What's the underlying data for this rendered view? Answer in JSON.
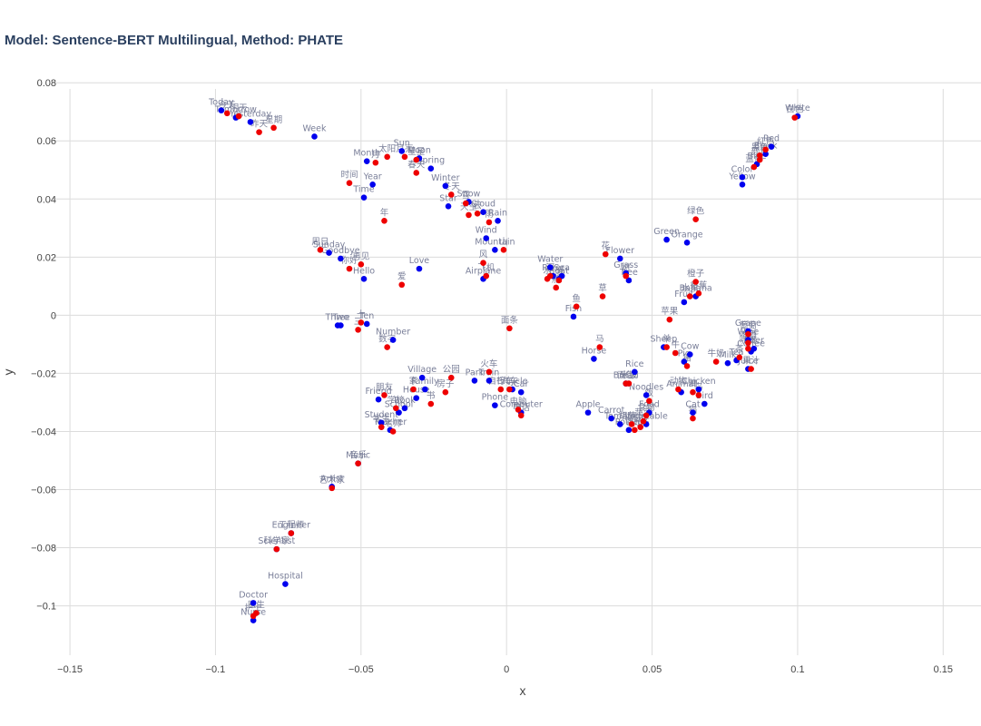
{
  "chart_data": {
    "type": "scatter",
    "title": "Model: Sentence-BERT Multilingual, Method: PHATE",
    "xlabel": "x",
    "ylabel": "y",
    "xlim": [
      -0.16,
      0.163
    ],
    "ylim": [
      -0.117,
      0.081
    ],
    "x_ticks": [
      -0.15,
      -0.1,
      -0.05,
      0,
      0.05,
      0.1,
      0.15
    ],
    "x_tick_labels": [
      "−0.15",
      "−0.1",
      "−0.05",
      "0",
      "0.05",
      "0.1",
      "0.15"
    ],
    "y_ticks": [
      0.08,
      0.06,
      0.04,
      0.02,
      0,
      -0.02,
      -0.04,
      -0.06,
      -0.08,
      -0.1
    ],
    "y_tick_labels": [
      "0.08",
      "0.06",
      "0.04",
      "0.02",
      "0",
      "−0.02",
      "−0.04",
      "−0.06",
      "−0.08",
      "−0.1"
    ],
    "grid": true,
    "legend": "none",
    "colors": {
      "english": "#0000ee",
      "chinese": "#ee0000"
    },
    "series": [
      {
        "color": "blue",
        "points": [
          {
            "label": "Today",
            "x": -0.098,
            "y": 0.0705
          },
          {
            "label": "Tomorrow",
            "x": -0.093,
            "y": 0.068
          },
          {
            "label": "Yesterday",
            "x": -0.088,
            "y": 0.0665
          },
          {
            "label": "Week",
            "x": -0.066,
            "y": 0.0615
          },
          {
            "label": "Month",
            "x": -0.048,
            "y": 0.053
          },
          {
            "label": "Sun",
            "x": -0.036,
            "y": 0.0565
          },
          {
            "label": "Moon",
            "x": -0.03,
            "y": 0.054
          },
          {
            "label": "Spring",
            "x": -0.026,
            "y": 0.0505
          },
          {
            "label": "Winter",
            "x": -0.021,
            "y": 0.0445
          },
          {
            "label": "Snow",
            "x": -0.013,
            "y": 0.039
          },
          {
            "label": "Star",
            "x": -0.02,
            "y": 0.0375
          },
          {
            "label": "Cloud",
            "x": -0.008,
            "y": 0.0355
          },
          {
            "label": "Rain",
            "x": -0.003,
            "y": 0.0325
          },
          {
            "label": "Year",
            "x": -0.046,
            "y": 0.045
          },
          {
            "label": "Time",
            "x": -0.049,
            "y": 0.0405
          },
          {
            "label": "Wind",
            "x": -0.007,
            "y": 0.0265
          },
          {
            "label": "Mountain",
            "x": -0.004,
            "y": 0.0225
          },
          {
            "label": "Airplane",
            "x": -0.008,
            "y": 0.0125
          },
          {
            "label": "Love",
            "x": -0.03,
            "y": 0.016
          },
          {
            "label": "Sunday",
            "x": -0.061,
            "y": 0.0215
          },
          {
            "label": "Goodbye",
            "x": -0.057,
            "y": 0.0195
          },
          {
            "label": "Hello",
            "x": -0.049,
            "y": 0.0125
          },
          {
            "label": "Three",
            "x": -0.058,
            "y": -0.0035
          },
          {
            "label": "Two",
            "x": -0.057,
            "y": -0.0035
          },
          {
            "label": "Ten",
            "x": -0.048,
            "y": -0.003
          },
          {
            "label": "Number",
            "x": -0.039,
            "y": -0.0085
          },
          {
            "label": "Friend",
            "x": -0.044,
            "y": -0.029
          },
          {
            "label": "School",
            "x": -0.037,
            "y": -0.0335
          },
          {
            "label": "Student",
            "x": -0.043,
            "y": -0.037
          },
          {
            "label": "Teacher",
            "x": -0.04,
            "y": -0.0395
          },
          {
            "label": "Village",
            "x": -0.029,
            "y": -0.0215
          },
          {
            "label": "Family",
            "x": -0.028,
            "y": -0.0255
          },
          {
            "label": "House",
            "x": -0.031,
            "y": -0.0285
          },
          {
            "label": "Book",
            "x": -0.035,
            "y": -0.032
          },
          {
            "label": "Music",
            "x": -0.051,
            "y": -0.051
          },
          {
            "label": "Artist",
            "x": -0.06,
            "y": -0.059
          },
          {
            "label": "Engineer",
            "x": -0.074,
            "y": -0.075
          },
          {
            "label": "Scientist",
            "x": -0.079,
            "y": -0.0805
          },
          {
            "label": "Hospital",
            "x": -0.076,
            "y": -0.0925
          },
          {
            "label": "Doctor",
            "x": -0.087,
            "y": -0.099
          },
          {
            "label": "Nurse",
            "x": -0.087,
            "y": -0.105
          },
          {
            "label": "Park",
            "x": -0.011,
            "y": -0.0225
          },
          {
            "label": "Train",
            "x": -0.006,
            "y": -0.0225
          },
          {
            "label": "Phone",
            "x": -0.004,
            "y": -0.031
          },
          {
            "label": "Bicycle",
            "x": 0.002,
            "y": -0.0255
          },
          {
            "label": "Car",
            "x": 0.005,
            "y": -0.0265
          },
          {
            "label": "Computer",
            "x": 0.005,
            "y": -0.0335
          },
          {
            "label": "Water",
            "x": 0.015,
            "y": 0.0165
          },
          {
            "label": "River",
            "x": 0.016,
            "y": 0.0135
          },
          {
            "label": "Boat",
            "x": 0.018,
            "y": 0.0125
          },
          {
            "label": "Sea",
            "x": 0.019,
            "y": 0.0135
          },
          {
            "label": "Fish",
            "x": 0.023,
            "y": -0.0005
          },
          {
            "label": "Flower",
            "x": 0.039,
            "y": 0.0195
          },
          {
            "label": "Grass",
            "x": 0.041,
            "y": 0.0145
          },
          {
            "label": "Tree",
            "x": 0.042,
            "y": 0.012
          },
          {
            "label": "Green",
            "x": 0.055,
            "y": 0.026
          },
          {
            "label": "Orange",
            "x": 0.062,
            "y": 0.025
          },
          {
            "label": "Fruit",
            "x": 0.061,
            "y": 0.0045
          },
          {
            "label": "Banana",
            "x": 0.065,
            "y": 0.0065
          },
          {
            "label": "Horse",
            "x": 0.03,
            "y": -0.015
          },
          {
            "label": "Rice",
            "x": 0.044,
            "y": -0.0195
          },
          {
            "label": "Bread",
            "x": 0.041,
            "y": -0.0235
          },
          {
            "label": "Noodles",
            "x": 0.048,
            "y": -0.0275
          },
          {
            "label": "Food",
            "x": 0.049,
            "y": -0.0335
          },
          {
            "label": "Apple",
            "x": 0.028,
            "y": -0.0335
          },
          {
            "label": "Carrot",
            "x": 0.036,
            "y": -0.0355
          },
          {
            "label": "Tomato",
            "x": 0.039,
            "y": -0.0375
          },
          {
            "label": "Potato",
            "x": 0.042,
            "y": -0.0395
          },
          {
            "label": "Vegetable",
            "x": 0.048,
            "y": -0.0375
          },
          {
            "label": "Sheep",
            "x": 0.054,
            "y": -0.011
          },
          {
            "label": "Cow",
            "x": 0.063,
            "y": -0.0135
          },
          {
            "label": "Pig",
            "x": 0.061,
            "y": -0.016
          },
          {
            "label": "Animal",
            "x": 0.06,
            "y": -0.0265
          },
          {
            "label": "Chicken",
            "x": 0.066,
            "y": -0.0255
          },
          {
            "label": "Bird",
            "x": 0.068,
            "y": -0.0305
          },
          {
            "label": "Cat",
            "x": 0.064,
            "y": -0.0335
          },
          {
            "label": "Milk",
            "x": 0.076,
            "y": -0.0165
          },
          {
            "label": "Tea",
            "x": 0.079,
            "y": -0.0155
          },
          {
            "label": "Coffee",
            "x": 0.084,
            "y": -0.0125
          },
          {
            "label": "Juice",
            "x": 0.083,
            "y": -0.0185
          },
          {
            "label": "Grape",
            "x": 0.083,
            "y": -0.0055
          },
          {
            "label": "Wine",
            "x": 0.083,
            "y": -0.0085
          },
          {
            "label": "Beer",
            "x": 0.085,
            "y": -0.0115
          },
          {
            "label": "Color",
            "x": 0.081,
            "y": 0.0475
          },
          {
            "label": "Yellow",
            "x": 0.081,
            "y": 0.045
          },
          {
            "label": "Red",
            "x": 0.091,
            "y": 0.058
          },
          {
            "label": "Black",
            "x": 0.089,
            "y": 0.0555
          },
          {
            "label": "Blue",
            "x": 0.086,
            "y": 0.052
          },
          {
            "label": "White",
            "x": 0.1,
            "y": 0.0685
          }
        ]
      },
      {
        "color": "red",
        "points": [
          {
            "label": "今天",
            "x": -0.096,
            "y": 0.0695
          },
          {
            "label": "明天",
            "x": -0.092,
            "y": 0.0685
          },
          {
            "label": "昨天",
            "x": -0.085,
            "y": 0.063
          },
          {
            "label": "星期",
            "x": -0.08,
            "y": 0.0645
          },
          {
            "label": "时间",
            "x": -0.054,
            "y": 0.0455
          },
          {
            "label": "年",
            "x": -0.042,
            "y": 0.0325
          },
          {
            "label": "月",
            "x": -0.045,
            "y": 0.0525
          },
          {
            "label": "太阳",
            "x": -0.041,
            "y": 0.0545
          },
          {
            "label": "月亮",
            "x": -0.035,
            "y": 0.0545
          },
          {
            "label": "星星",
            "x": -0.031,
            "y": 0.0535
          },
          {
            "label": "春天",
            "x": -0.031,
            "y": 0.049
          },
          {
            "label": "冬天",
            "x": -0.019,
            "y": 0.0415
          },
          {
            "label": "雪",
            "x": -0.014,
            "y": 0.0385
          },
          {
            "label": "云",
            "x": -0.01,
            "y": 0.035
          },
          {
            "label": "雨",
            "x": -0.006,
            "y": 0.032
          },
          {
            "label": "天空",
            "x": -0.013,
            "y": 0.0345
          },
          {
            "label": "风",
            "x": -0.008,
            "y": 0.018
          },
          {
            "label": "山",
            "x": -0.001,
            "y": 0.0225
          },
          {
            "label": "飞机",
            "x": -0.007,
            "y": 0.0135
          },
          {
            "label": "爱",
            "x": -0.036,
            "y": 0.0105
          },
          {
            "label": "周日",
            "x": -0.064,
            "y": 0.0225
          },
          {
            "label": "再见",
            "x": -0.05,
            "y": 0.0175
          },
          {
            "label": "你好",
            "x": -0.054,
            "y": 0.016
          },
          {
            "label": "三",
            "x": -0.051,
            "y": -0.005
          },
          {
            "label": "十",
            "x": -0.05,
            "y": -0.0025
          },
          {
            "label": "数字",
            "x": -0.041,
            "y": -0.011
          },
          {
            "label": "朋友",
            "x": -0.042,
            "y": -0.0275
          },
          {
            "label": "学校",
            "x": -0.038,
            "y": -0.032
          },
          {
            "label": "学生",
            "x": -0.043,
            "y": -0.0385
          },
          {
            "label": "老师",
            "x": -0.039,
            "y": -0.04
          },
          {
            "label": "家",
            "x": -0.032,
            "y": -0.0255
          },
          {
            "label": "书",
            "x": -0.026,
            "y": -0.0305
          },
          {
            "label": "公园",
            "x": -0.019,
            "y": -0.0215
          },
          {
            "label": "房子",
            "x": -0.021,
            "y": -0.0265
          },
          {
            "label": "音乐",
            "x": -0.051,
            "y": -0.051
          },
          {
            "label": "艺术家",
            "x": -0.06,
            "y": -0.0595
          },
          {
            "label": "工程师",
            "x": -0.074,
            "y": -0.075
          },
          {
            "label": "科学家",
            "x": -0.079,
            "y": -0.0805
          },
          {
            "label": "医生",
            "x": -0.086,
            "y": -0.1025
          },
          {
            "label": "护士",
            "x": -0.087,
            "y": -0.1035
          },
          {
            "label": "火车",
            "x": -0.006,
            "y": -0.0195
          },
          {
            "label": "自行车",
            "x": -0.002,
            "y": -0.0255
          },
          {
            "label": "汽车",
            "x": 0.001,
            "y": -0.0255
          },
          {
            "label": "电脑",
            "x": 0.004,
            "y": -0.0325
          },
          {
            "label": "电话",
            "x": 0.005,
            "y": -0.0345
          },
          {
            "label": "面条",
            "x": 0.001,
            "y": -0.0045
          },
          {
            "label": "水",
            "x": 0.014,
            "y": 0.0125
          },
          {
            "label": "河",
            "x": 0.015,
            "y": 0.0135
          },
          {
            "label": "船",
            "x": 0.017,
            "y": 0.0095
          },
          {
            "label": "海",
            "x": 0.018,
            "y": 0.012
          },
          {
            "label": "鱼",
            "x": 0.024,
            "y": 0.003
          },
          {
            "label": "花",
            "x": 0.034,
            "y": 0.021
          },
          {
            "label": "草",
            "x": 0.033,
            "y": 0.0065
          },
          {
            "label": "树",
            "x": 0.041,
            "y": 0.0135
          },
          {
            "label": "绿色",
            "x": 0.065,
            "y": 0.033
          },
          {
            "label": "橙子",
            "x": 0.065,
            "y": 0.0115
          },
          {
            "label": "香蕉",
            "x": 0.066,
            "y": 0.0075
          },
          {
            "label": "水果",
            "x": 0.063,
            "y": 0.0065
          },
          {
            "label": "苹果",
            "x": 0.056,
            "y": -0.0015
          },
          {
            "label": "马",
            "x": 0.032,
            "y": -0.011
          },
          {
            "label": "米饭",
            "x": 0.042,
            "y": -0.0235
          },
          {
            "label": "面包",
            "x": 0.041,
            "y": -0.0235
          },
          {
            "label": "饭",
            "x": 0.049,
            "y": -0.0295
          },
          {
            "label": "食物",
            "x": 0.048,
            "y": -0.0345
          },
          {
            "label": "胡萝卜",
            "x": 0.043,
            "y": -0.0375
          },
          {
            "label": "番茄",
            "x": 0.044,
            "y": -0.0395
          },
          {
            "label": "土豆",
            "x": 0.046,
            "y": -0.0385
          },
          {
            "label": "蔬菜",
            "x": 0.047,
            "y": -0.0365
          },
          {
            "label": "羊",
            "x": 0.055,
            "y": -0.011
          },
          {
            "label": "牛",
            "x": 0.058,
            "y": -0.013
          },
          {
            "label": "猪",
            "x": 0.062,
            "y": -0.0175
          },
          {
            "label": "牛奶",
            "x": 0.072,
            "y": -0.016
          },
          {
            "label": "动物",
            "x": 0.059,
            "y": -0.0255
          },
          {
            "label": "鸡",
            "x": 0.064,
            "y": -0.0265
          },
          {
            "label": "鸟",
            "x": 0.066,
            "y": -0.0275
          },
          {
            "label": "猫",
            "x": 0.064,
            "y": -0.0355
          },
          {
            "label": "茶",
            "x": 0.08,
            "y": -0.0145
          },
          {
            "label": "咖啡",
            "x": 0.083,
            "y": -0.0115
          },
          {
            "label": "果汁",
            "x": 0.084,
            "y": -0.0185
          },
          {
            "label": "葡萄",
            "x": 0.083,
            "y": -0.0065
          },
          {
            "label": "啤酒",
            "x": 0.083,
            "y": -0.0095
          },
          {
            "label": "颜色",
            "x": 0.087,
            "y": 0.0535
          },
          {
            "label": "红色",
            "x": 0.089,
            "y": 0.057
          },
          {
            "label": "黑色",
            "x": 0.087,
            "y": 0.055
          },
          {
            "label": "蓝色",
            "x": 0.085,
            "y": 0.051
          },
          {
            "label": "白色",
            "x": 0.099,
            "y": 0.068
          }
        ]
      }
    ]
  }
}
